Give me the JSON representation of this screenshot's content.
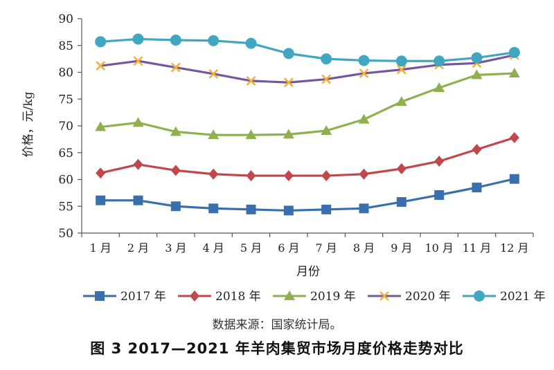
{
  "chart_data": {
    "type": "line",
    "title": "图 3 2017—2021 年羊肉集贸市场月度价格走势对比",
    "source_note": "数据来源：国家统计局。",
    "xlabel": "月份",
    "ylabel": "价格，元/kg",
    "categories": [
      "1 月",
      "2 月",
      "3 月",
      "4 月",
      "5 月",
      "6 月",
      "7 月",
      "8 月",
      "9 月",
      "10 月",
      "11 月",
      "12 月"
    ],
    "ylim": [
      50,
      90
    ],
    "yticks": [
      "50",
      "55",
      "60",
      "65",
      "70",
      "75",
      "80",
      "85",
      "90"
    ],
    "grid": false,
    "legend_position": "bottom",
    "series": [
      {
        "name": "2017 年",
        "color": "#3a6fad",
        "marker": "square",
        "values": [
          56.1,
          56.1,
          55.0,
          54.6,
          54.4,
          54.2,
          54.4,
          54.6,
          55.8,
          57.1,
          58.5,
          60.1
        ]
      },
      {
        "name": "2018 年",
        "color": "#c0474a",
        "marker": "diamond",
        "values": [
          61.2,
          62.8,
          61.7,
          61.0,
          60.7,
          60.7,
          60.7,
          61.0,
          62.0,
          63.4,
          65.6,
          67.8
        ]
      },
      {
        "name": "2019 年",
        "color": "#8fb04f",
        "marker": "triangle",
        "values": [
          69.8,
          70.6,
          68.9,
          68.3,
          68.3,
          68.4,
          69.1,
          71.2,
          74.5,
          77.1,
          79.5,
          79.8
        ]
      },
      {
        "name": "2020 年",
        "color": "#7355a0",
        "marker": "x",
        "values": [
          81.2,
          82.1,
          80.9,
          79.7,
          78.4,
          78.1,
          78.7,
          79.8,
          80.5,
          81.4,
          81.7,
          83.2
        ]
      },
      {
        "name": "2021 年",
        "color": "#41a7c1",
        "marker": "circle",
        "values": [
          85.7,
          86.2,
          86.0,
          85.9,
          85.4,
          83.5,
          82.5,
          82.2,
          82.1,
          82.1,
          82.7,
          83.7
        ]
      }
    ]
  }
}
